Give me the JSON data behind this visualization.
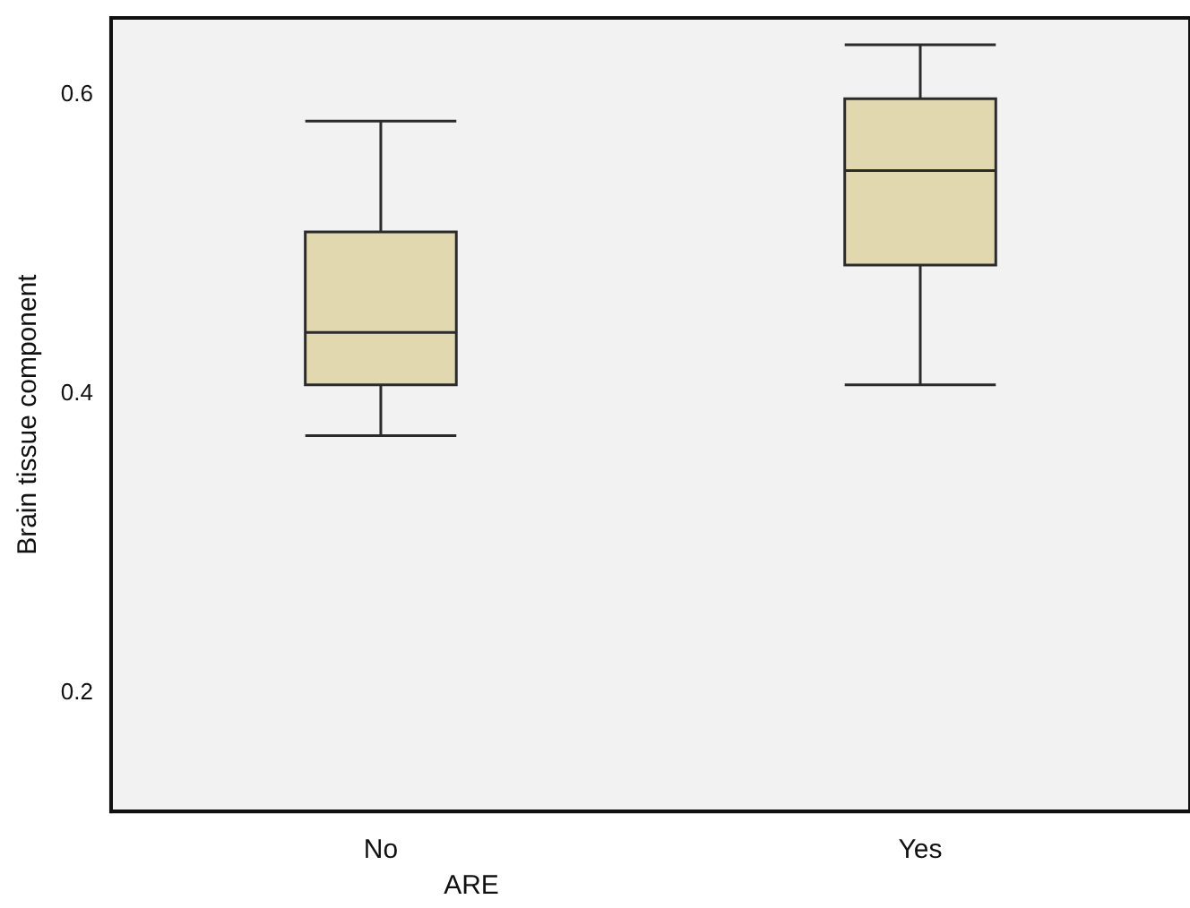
{
  "chart_data": {
    "type": "box",
    "xlabel": "ARE",
    "ylabel": "Brain tissue component",
    "categories": [
      "No",
      "Yes"
    ],
    "boxes": [
      {
        "low": 0.371,
        "q1": 0.405,
        "median": 0.44,
        "q3": 0.507,
        "high": 0.581
      },
      {
        "low": 0.405,
        "q1": 0.485,
        "median": 0.548,
        "q3": 0.596,
        "high": 0.632
      }
    ],
    "color": "#e2d8b0",
    "ylim": [
      0.12,
      0.65
    ],
    "yticks": [
      0.2,
      0.4,
      0.6
    ],
    "grid": false
  }
}
